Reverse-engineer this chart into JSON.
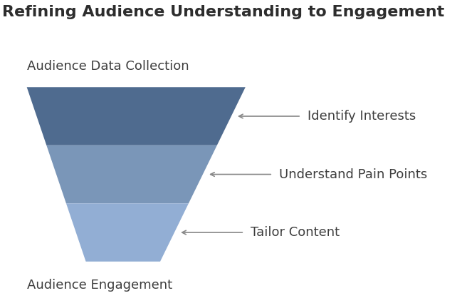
{
  "title": "Refining Audience Understanding to Engagement",
  "title_fontsize": 16,
  "title_fontweight": "bold",
  "title_color": "#2d2d2d",
  "top_label": "Audience Data Collection",
  "bottom_label": "Audience Engagement",
  "label_fontsize": 13,
  "label_color": "#3d3d3d",
  "layers": [
    {
      "label": "Identify Interests",
      "color": "#4f6b8f"
    },
    {
      "label": "Understand Pain Points",
      "color": "#7a96b8"
    },
    {
      "label": "Tailor Content",
      "color": "#92aed4"
    }
  ],
  "arrow_color": "#888888",
  "annotation_fontsize": 13,
  "annotation_color": "#3d3d3d",
  "bg_color": "#ffffff"
}
